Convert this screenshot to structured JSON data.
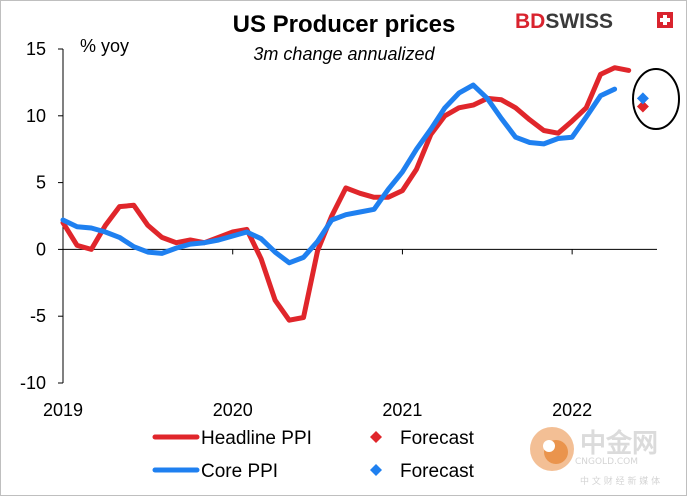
{
  "chart_data": {
    "type": "line",
    "title": "US Producer prices",
    "subtitle": "3m change annualized",
    "ylabel": "% yoy",
    "ylim": [
      -10,
      15
    ],
    "yticks": [
      -10,
      -5,
      0,
      5,
      10,
      15
    ],
    "xlim": [
      2019.0,
      2022.5
    ],
    "xticks": [
      {
        "value": 2019.0,
        "label": "2019"
      },
      {
        "value": 2020.0,
        "label": "2020"
      },
      {
        "value": 2021.0,
        "label": "2021"
      },
      {
        "value": 2022.0,
        "label": "2022"
      }
    ],
    "series": [
      {
        "name": "Headline PPI",
        "color": "#e0262b",
        "x": [
          2019.0,
          2019.083,
          2019.167,
          2019.25,
          2019.333,
          2019.417,
          2019.5,
          2019.583,
          2019.667,
          2019.75,
          2019.833,
          2019.917,
          2020.0,
          2020.083,
          2020.167,
          2020.25,
          2020.333,
          2020.417,
          2020.5,
          2020.583,
          2020.667,
          2020.75,
          2020.833,
          2020.917,
          2021.0,
          2021.083,
          2021.167,
          2021.25,
          2021.333,
          2021.417,
          2021.5,
          2021.583,
          2021.667,
          2021.75,
          2021.833,
          2021.917,
          2022.0,
          2022.083,
          2022.167,
          2022.25,
          2022.333
        ],
        "values": [
          2.0,
          0.3,
          0.0,
          1.8,
          3.2,
          3.3,
          1.8,
          0.9,
          0.5,
          0.7,
          0.5,
          0.9,
          1.3,
          1.5,
          -0.7,
          -3.8,
          -5.3,
          -5.1,
          -0.1,
          2.5,
          4.6,
          4.2,
          3.9,
          3.9,
          4.4,
          6.0,
          8.6,
          10.0,
          10.6,
          10.8,
          11.3,
          11.2,
          10.6,
          9.7,
          8.9,
          8.7,
          9.6,
          10.6,
          13.1,
          13.6,
          13.4
        ]
      },
      {
        "name": "Core PPI",
        "color": "#1f80f0",
        "x": [
          2019.0,
          2019.083,
          2019.167,
          2019.25,
          2019.333,
          2019.417,
          2019.5,
          2019.583,
          2019.667,
          2019.75,
          2019.833,
          2019.917,
          2020.0,
          2020.083,
          2020.167,
          2020.25,
          2020.333,
          2020.417,
          2020.5,
          2020.583,
          2020.667,
          2020.75,
          2020.833,
          2020.917,
          2021.0,
          2021.083,
          2021.167,
          2021.25,
          2021.333,
          2021.417,
          2021.5,
          2021.583,
          2021.667,
          2021.75,
          2021.833,
          2021.917,
          2022.0,
          2022.083,
          2022.167,
          2022.25,
          2022.333
        ],
        "values": [
          2.2,
          1.7,
          1.6,
          1.3,
          0.9,
          0.2,
          -0.2,
          -0.3,
          0.1,
          0.4,
          0.5,
          0.7,
          1.0,
          1.3,
          0.8,
          -0.2,
          -1.0,
          -0.6,
          0.6,
          2.2,
          2.6,
          2.8,
          3.0,
          4.5,
          5.8,
          7.5,
          9.0,
          10.6,
          11.7,
          12.3,
          11.3,
          9.8,
          8.4,
          8.0,
          7.9,
          8.3,
          8.4,
          9.9,
          11.5,
          12.0,
          null
        ]
      }
    ],
    "forecasts": [
      {
        "name": "Forecast",
        "color": "#e0262b",
        "x": 2022.417,
        "value": 10.7
      },
      {
        "name": "Forecast",
        "color": "#1f80f0",
        "x": 2022.417,
        "value": 11.3
      }
    ],
    "legend": {
      "placement": "bottom",
      "entries": [
        {
          "label": "Headline PPI",
          "color": "#e0262b",
          "marker": "line"
        },
        {
          "label": "Forecast",
          "color": "#e0262b",
          "marker": "diamond"
        },
        {
          "label": "Core PPI",
          "color": "#1f80f0",
          "marker": "line"
        },
        {
          "label": "Forecast",
          "color": "#1f80f0",
          "marker": "diamond"
        }
      ]
    }
  },
  "brand": {
    "part1": "BD",
    "part2": "SWISS",
    "color": "#d9232e"
  },
  "watermark": {
    "big": "中金网",
    "small": "中 文 财 经 新 媒 体",
    "site": "CNGOLD.COM"
  }
}
